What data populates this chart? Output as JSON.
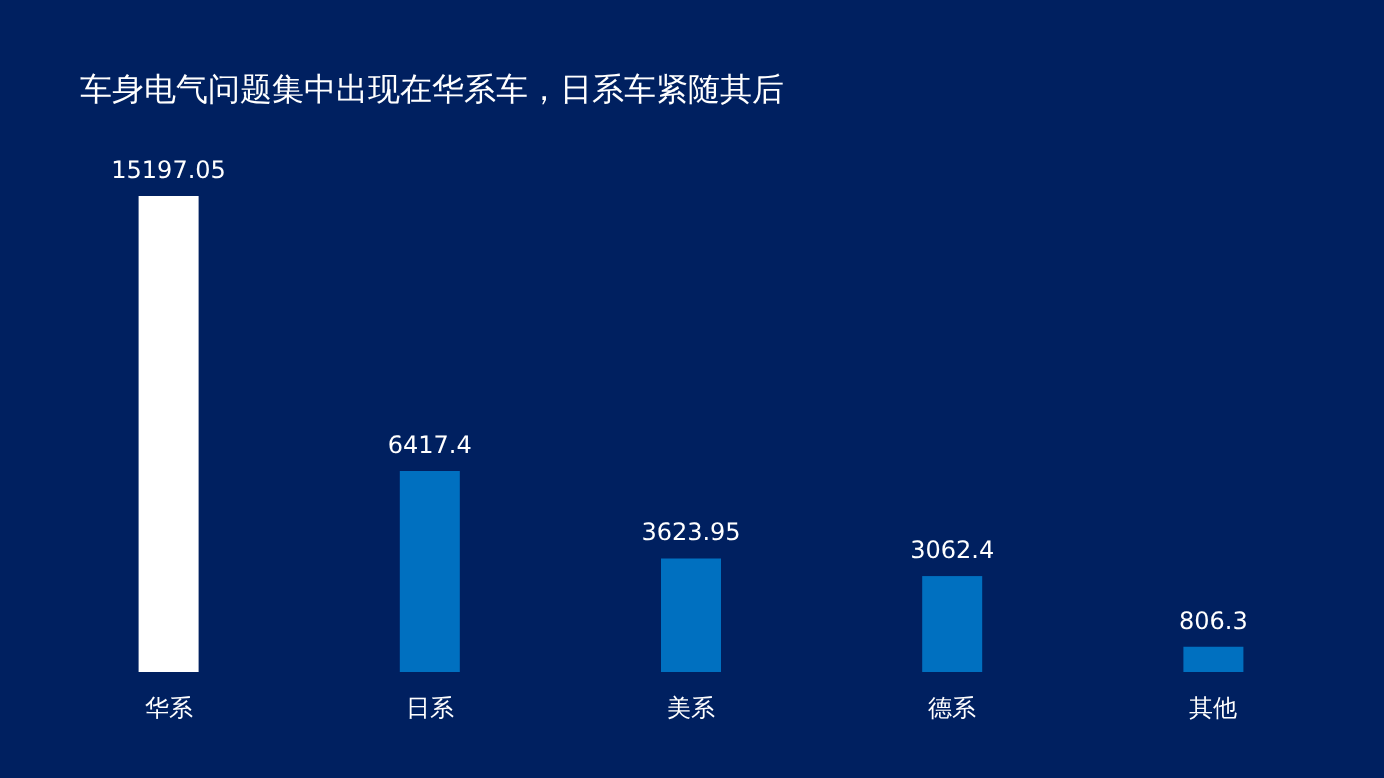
{
  "chart_data": {
    "type": "bar",
    "title": "车身电气问题集中出现在华系车，日系车紧随其后",
    "categories": [
      "华系",
      "日系",
      "美系",
      "德系",
      "其他"
    ],
    "values": [
      15197.05,
      6417.4,
      3623.95,
      3062.4,
      806.3
    ],
    "colors": [
      "#ffffff",
      "#0070c0",
      "#0070c0",
      "#0070c0",
      "#0070c0"
    ],
    "data_labels": true
  }
}
